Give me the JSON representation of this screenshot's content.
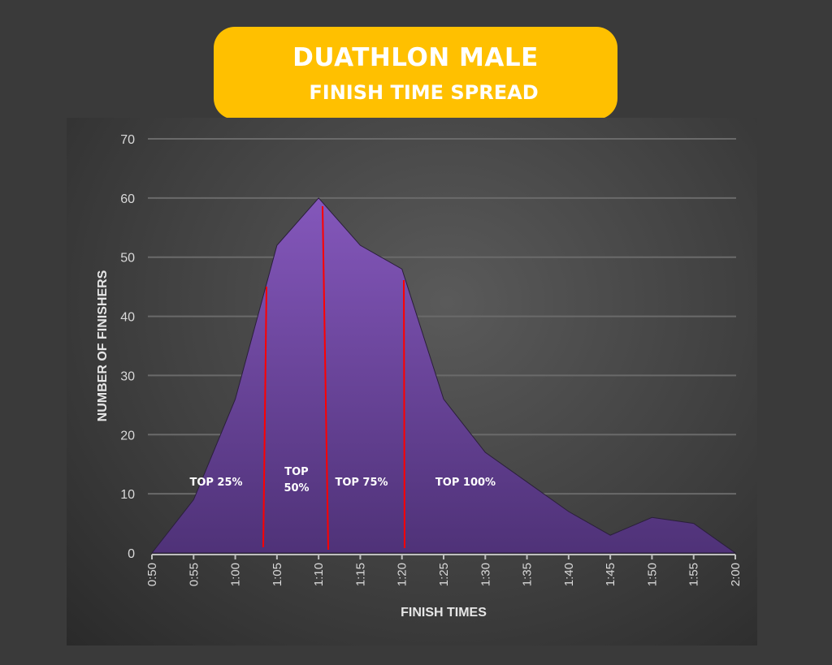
{
  "title": {
    "line1": "DUATHLON MALE",
    "line2": "FINISH TIME SPREAD"
  },
  "colors": {
    "title_bg": "#FFC000",
    "area_top": "#8457BB",
    "area_bottom": "#4F3278",
    "divider": "#FF0000",
    "background": "#3a3a3a"
  },
  "chart_data": {
    "type": "area",
    "title": "DUATHLON MALE FINISH TIME SPREAD",
    "xlabel": "FINISH TIMES",
    "ylabel": "NUMBER OF FINISHERS",
    "categories": [
      "0:50",
      "0:55",
      "1:00",
      "1:05",
      "1:10",
      "1:15",
      "1:20",
      "1:25",
      "1:30",
      "1:35",
      "1:40",
      "1:45",
      "1:50",
      "1:55",
      "2:00"
    ],
    "values": [
      0,
      9,
      26,
      52,
      60,
      52,
      48,
      26,
      17,
      12,
      7,
      3,
      6,
      5,
      0
    ],
    "ylim": [
      0,
      70
    ],
    "yticks": [
      0,
      10,
      20,
      30,
      40,
      50,
      60,
      70
    ],
    "grid": true,
    "annotations": [
      {
        "lines": [
          "TOP 25%"
        ]
      },
      {
        "lines": [
          "TOP",
          "50%"
        ]
      },
      {
        "lines": [
          "TOP 75%"
        ]
      },
      {
        "lines": [
          "TOP 100%"
        ]
      }
    ]
  }
}
